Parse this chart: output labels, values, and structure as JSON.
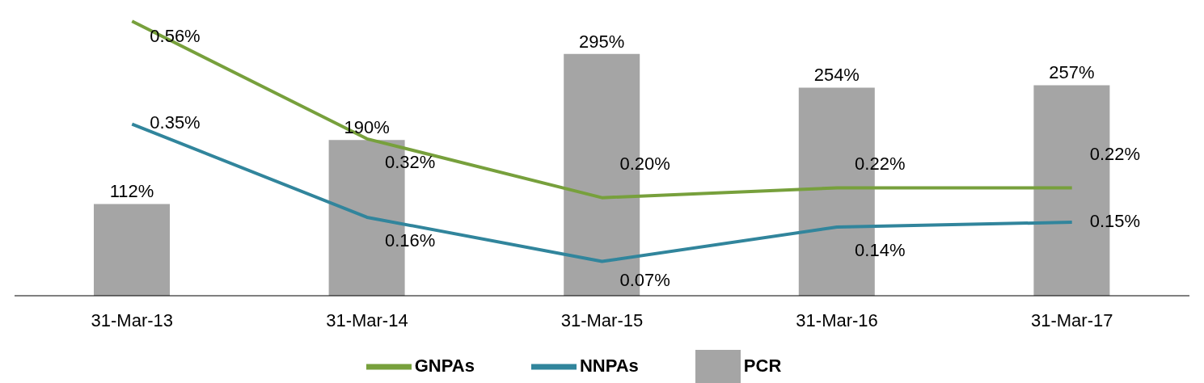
{
  "chart_data": {
    "type": "bar",
    "categories": [
      "31-Mar-13",
      "31-Mar-14",
      "31-Mar-15",
      "31-Mar-16",
      "31-Mar-17"
    ],
    "series": [
      {
        "name": "PCR",
        "color": "#a5a5a5",
        "values": [
          112,
          190,
          295,
          254,
          257
        ],
        "value_labels": [
          "112%",
          "190%",
          "295%",
          "254%",
          "257%"
        ]
      },
      {
        "name": "NNPAs",
        "type": "line",
        "axis": "y2",
        "color": "#31859c",
        "values": [
          0.35,
          0.16,
          0.07,
          0.14,
          0.15
        ],
        "value_labels": [
          "0.35%",
          "0.16%",
          "0.07%",
          "0.14%",
          "0.15%"
        ]
      },
      {
        "name": "GNPAs",
        "type": "line",
        "axis": "y2",
        "color": "#77a03c",
        "values": [
          0.56,
          0.32,
          0.2,
          0.22,
          0.22
        ],
        "value_labels": [
          "0.56%",
          "0.32%",
          "0.20%",
          "0.22%",
          "0.22%"
        ]
      }
    ],
    "legend": "bottom",
    "grid": false,
    "marker": "none"
  }
}
